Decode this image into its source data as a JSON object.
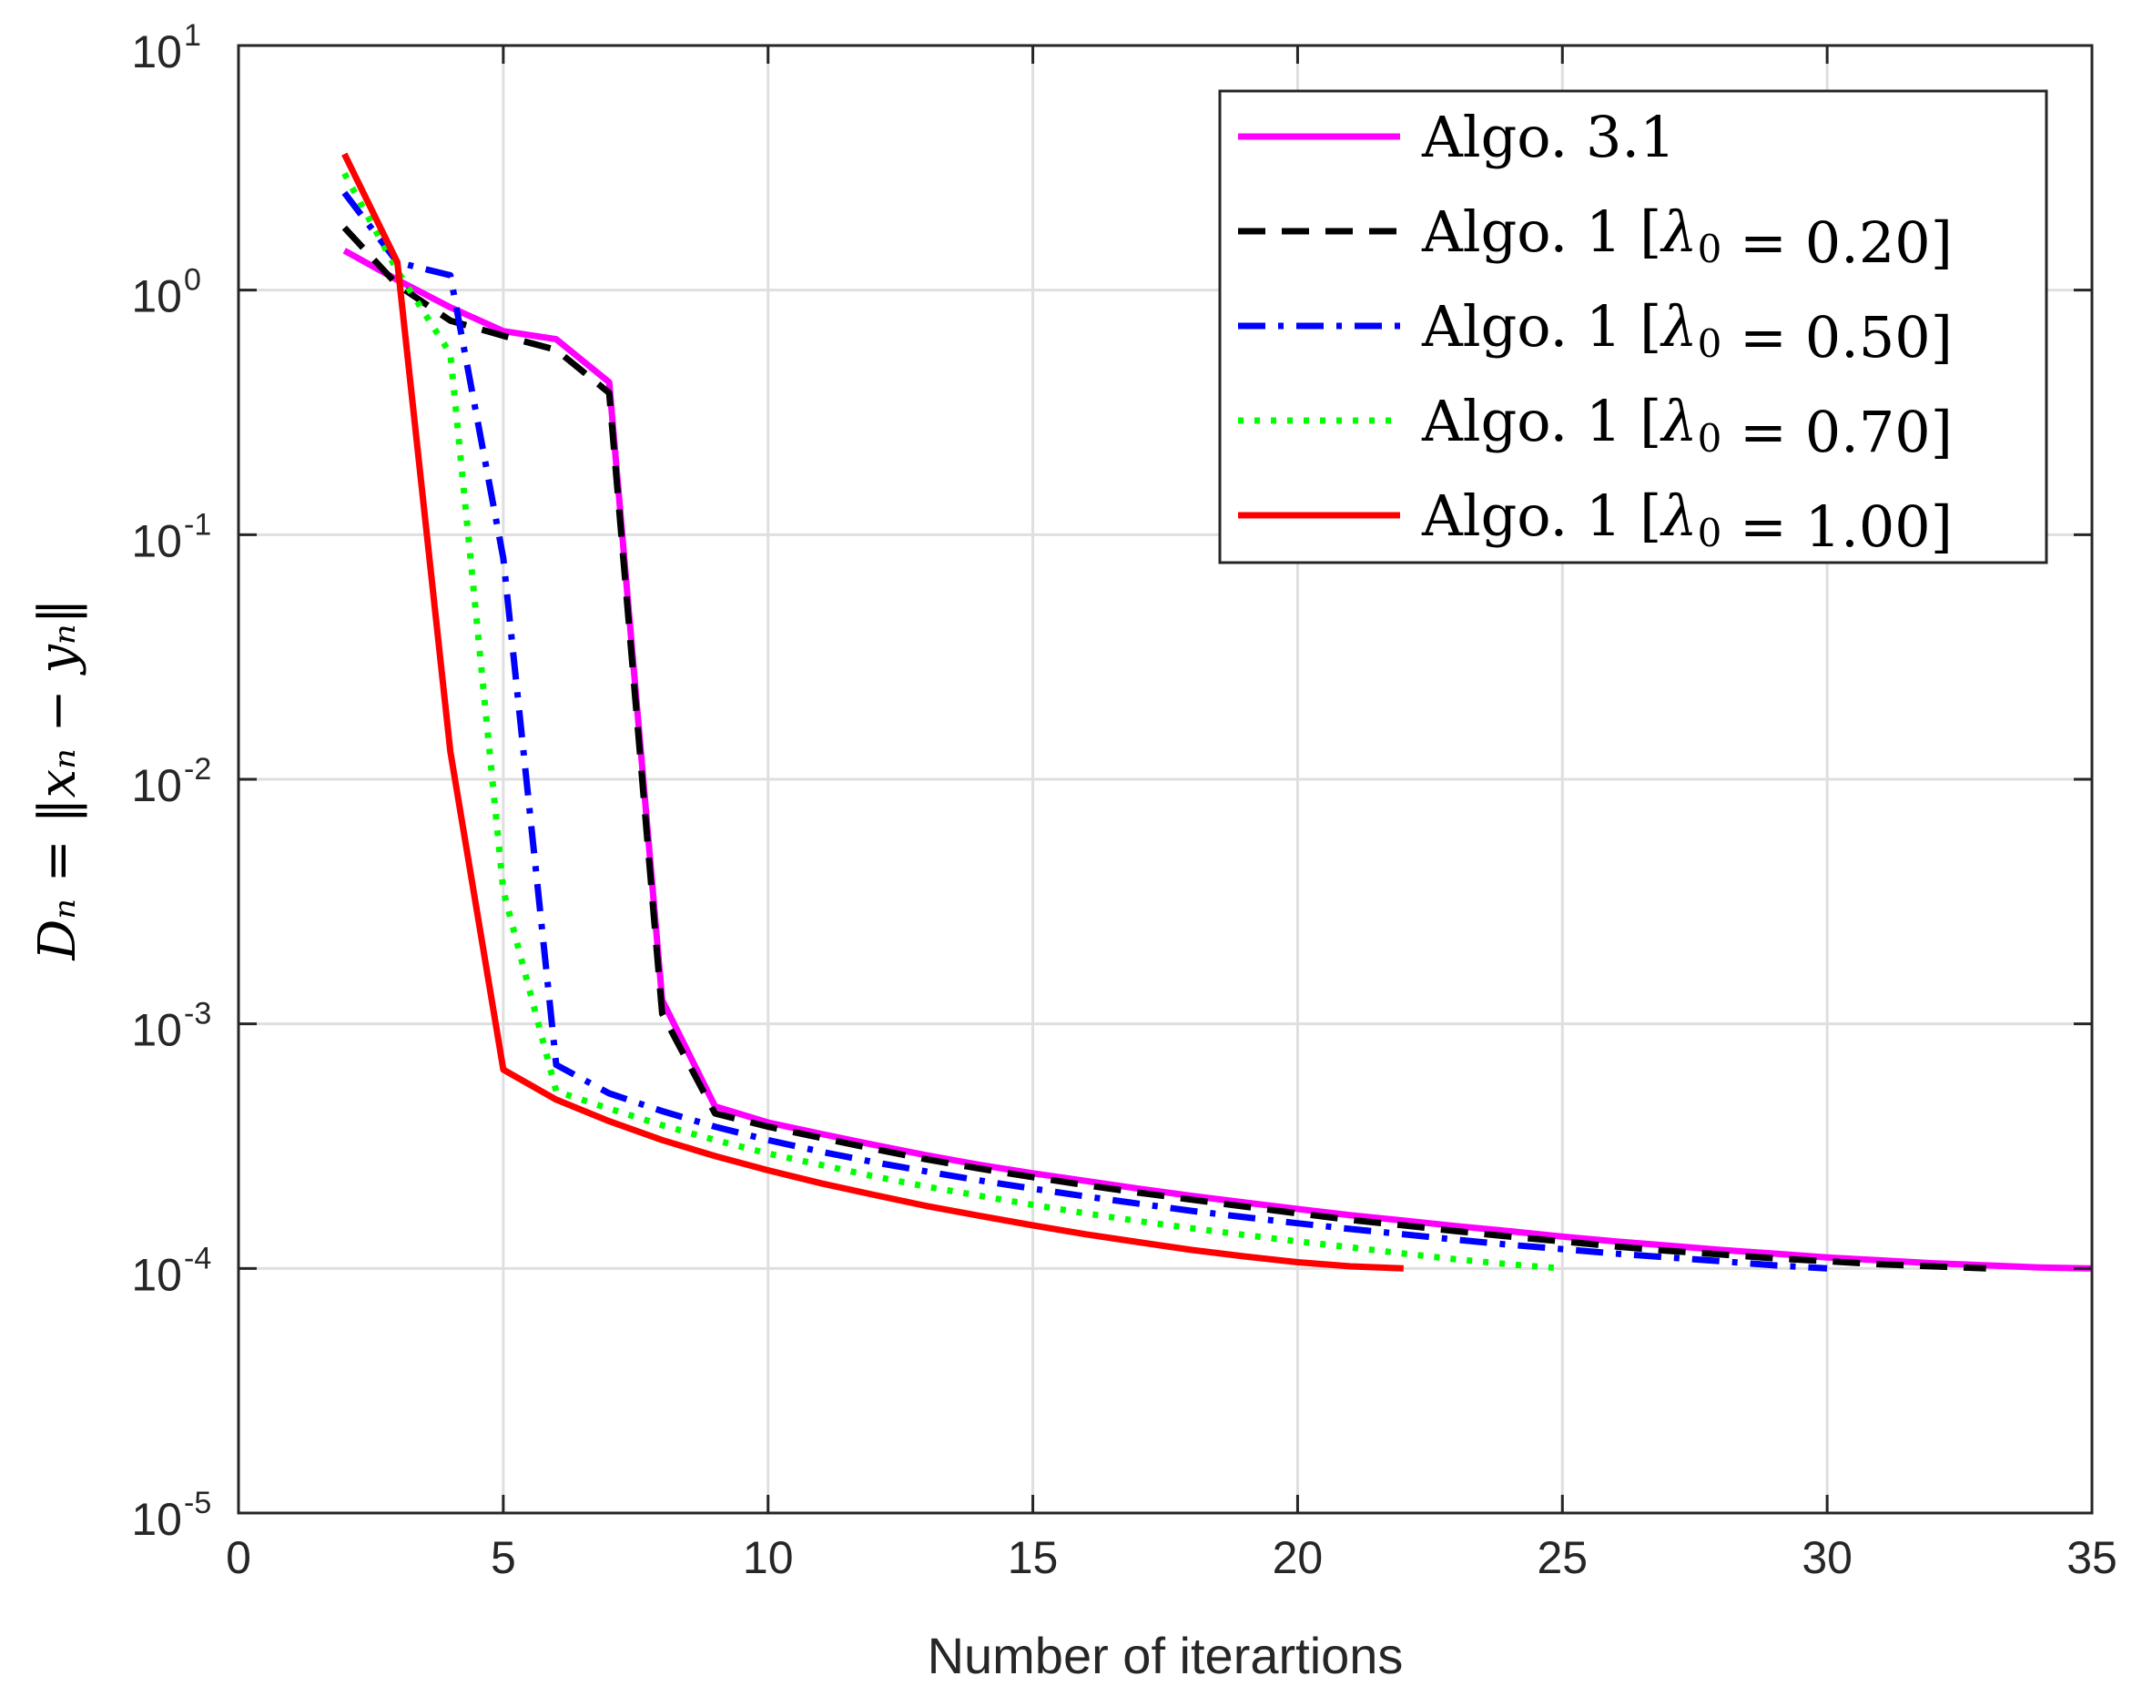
{
  "chart_data": {
    "type": "line",
    "xlabel": "Number of iterartions",
    "ylabel": "D_n = ||x_n − y_n||",
    "ylabel_display": "Dₙ = ‖xₙ − yₙ‖",
    "xscale": "linear",
    "yscale": "log",
    "xlim": [
      0,
      35
    ],
    "ylim": [
      1e-05,
      10
    ],
    "grid": true,
    "legend_position": "top-right",
    "x_ticks": [
      {
        "value": 0,
        "label": "0"
      },
      {
        "value": 5,
        "label": "5"
      },
      {
        "value": 10,
        "label": "10"
      },
      {
        "value": 15,
        "label": "15"
      },
      {
        "value": 20,
        "label": "20"
      },
      {
        "value": 25,
        "label": "25"
      },
      {
        "value": 30,
        "label": "30"
      },
      {
        "value": 35,
        "label": "35"
      }
    ],
    "y_ticks": [
      {
        "value": 10,
        "base": "10",
        "exp": "1"
      },
      {
        "value": 1,
        "base": "10",
        "exp": "0"
      },
      {
        "value": 0.1,
        "base": "10",
        "exp": "-1"
      },
      {
        "value": 0.01,
        "base": "10",
        "exp": "-2"
      },
      {
        "value": 0.001,
        "base": "10",
        "exp": "-3"
      },
      {
        "value": 0.0001,
        "base": "10",
        "exp": "-4"
      },
      {
        "value": 1e-05,
        "base": "10",
        "exp": "-5"
      }
    ],
    "series": [
      {
        "name": "Algo. 3.1",
        "color": "#ff00ff",
        "style": "solid",
        "points": [
          [
            2,
            1.45
          ],
          [
            3,
            1.1
          ],
          [
            4,
            0.85
          ],
          [
            5,
            0.68
          ],
          [
            6,
            0.63
          ],
          [
            7,
            0.42
          ],
          [
            8,
            0.00125
          ],
          [
            9,
            0.00046
          ],
          [
            10,
            0.000395
          ],
          [
            11,
            0.000355
          ],
          [
            12,
            0.00032
          ],
          [
            13,
            0.00029
          ],
          [
            14,
            0.000265
          ],
          [
            15,
            0.000245
          ],
          [
            16,
            0.000228
          ],
          [
            17,
            0.000212
          ],
          [
            18,
            0.000198
          ],
          [
            19,
            0.000186
          ],
          [
            20,
            0.000175
          ],
          [
            21,
            0.000165
          ],
          [
            22,
            0.000157
          ],
          [
            23,
            0.000149
          ],
          [
            24,
            0.000142
          ],
          [
            25,
            0.000135
          ],
          [
            26,
            0.000129
          ],
          [
            27,
            0.000124
          ],
          [
            28,
            0.000119
          ],
          [
            29,
            0.000115
          ],
          [
            30,
            0.000111
          ],
          [
            31,
            0.000108
          ],
          [
            32,
            0.000105
          ],
          [
            33,
            0.000103
          ],
          [
            34,
            0.000101
          ],
          [
            35,
            0.0001
          ]
        ]
      },
      {
        "name": "Algo. 1 [λ0 = 0.20]",
        "color": "#000000",
        "style": "dashed",
        "points": [
          [
            2,
            1.8
          ],
          [
            3,
            1.05
          ],
          [
            4,
            0.75
          ],
          [
            5,
            0.65
          ],
          [
            6,
            0.57
          ],
          [
            7,
            0.38
          ],
          [
            8,
            0.0011
          ],
          [
            9,
            0.00043
          ],
          [
            10,
            0.00038
          ],
          [
            11,
            0.000342
          ],
          [
            12,
            0.000308
          ],
          [
            13,
            0.000279
          ],
          [
            14,
            0.000256
          ],
          [
            15,
            0.000236
          ],
          [
            16,
            0.000219
          ],
          [
            17,
            0.000204
          ],
          [
            18,
            0.000191
          ],
          [
            19,
            0.000179
          ],
          [
            20,
            0.000168
          ],
          [
            21,
            0.000158
          ],
          [
            22,
            0.00015
          ],
          [
            23,
            0.000142
          ],
          [
            24,
            0.000135
          ],
          [
            25,
            0.000129
          ],
          [
            26,
            0.000123
          ],
          [
            27,
            0.000118
          ],
          [
            28,
            0.000114
          ],
          [
            29,
            0.00011
          ],
          [
            30,
            0.000107
          ],
          [
            31,
            0.000104
          ],
          [
            32,
            0.000102
          ],
          [
            33,
            0.0001
          ]
        ]
      },
      {
        "name": "Algo. 1 [λ0 = 0.50]",
        "color": "#0000ff",
        "style": "dashdot",
        "points": [
          [
            2,
            2.5
          ],
          [
            3,
            1.3
          ],
          [
            4,
            1.15
          ],
          [
            5,
            0.08
          ],
          [
            6,
            0.00068
          ],
          [
            7,
            0.00052
          ],
          [
            8,
            0.00044
          ],
          [
            9,
            0.00038
          ],
          [
            10,
            0.000335
          ],
          [
            11,
            0.0003
          ],
          [
            12,
            0.000272
          ],
          [
            13,
            0.000249
          ],
          [
            14,
            0.000229
          ],
          [
            15,
            0.000212
          ],
          [
            16,
            0.000197
          ],
          [
            17,
            0.000184
          ],
          [
            18,
            0.000172
          ],
          [
            19,
            0.000162
          ],
          [
            20,
            0.000153
          ],
          [
            21,
            0.000145
          ],
          [
            22,
            0.000138
          ],
          [
            23,
            0.000131
          ],
          [
            24,
            0.000125
          ],
          [
            25,
            0.00012
          ],
          [
            26,
            0.000115
          ],
          [
            27,
            0.000111
          ],
          [
            28,
            0.000107
          ],
          [
            29,
            0.000103
          ],
          [
            30,
            0.0001
          ]
        ]
      },
      {
        "name": "Algo. 1 [λ0 = 0.70]",
        "color": "#00ff00",
        "style": "dotted",
        "points": [
          [
            2,
            3.0
          ],
          [
            3,
            1.2
          ],
          [
            4,
            0.55
          ],
          [
            5,
            0.0035
          ],
          [
            6,
            0.00053
          ],
          [
            7,
            0.00045
          ],
          [
            8,
            0.000385
          ],
          [
            9,
            0.000335
          ],
          [
            10,
            0.000295
          ],
          [
            11,
            0.000265
          ],
          [
            12,
            0.000238
          ],
          [
            13,
            0.000216
          ],
          [
            14,
            0.000198
          ],
          [
            15,
            0.000182
          ],
          [
            16,
            0.000168
          ],
          [
            17,
            0.000156
          ],
          [
            18,
            0.000146
          ],
          [
            19,
            0.000137
          ],
          [
            20,
            0.000129
          ],
          [
            21,
            0.000122
          ],
          [
            22,
            0.000115
          ],
          [
            23,
            0.000109
          ],
          [
            24,
            0.000104
          ],
          [
            25,
            0.0001
          ]
        ]
      },
      {
        "name": "Algo. 1 [λ0 = 1.00]",
        "color": "#ff0000",
        "style": "solid",
        "points": [
          [
            2,
            3.6
          ],
          [
            3,
            1.3
          ],
          [
            4,
            0.013
          ],
          [
            5,
            0.00065
          ],
          [
            6,
            0.00049
          ],
          [
            7,
            0.0004
          ],
          [
            8,
            0.000335
          ],
          [
            9,
            0.000288
          ],
          [
            10,
            0.000252
          ],
          [
            11,
            0.000223
          ],
          [
            12,
            0.0002
          ],
          [
            13,
            0.00018
          ],
          [
            14,
            0.000164
          ],
          [
            15,
            0.00015
          ],
          [
            16,
            0.000138
          ],
          [
            17,
            0.000128
          ],
          [
            18,
            0.000119
          ],
          [
            19,
            0.000112
          ],
          [
            20,
            0.000106
          ],
          [
            21,
            0.000102
          ],
          [
            22,
            0.0001
          ]
        ]
      }
    ],
    "legend": [
      {
        "prefix": "Algo. ",
        "value": "3.1",
        "lambda_sym": "",
        "sub": "",
        "eq": "",
        "lam_value": "",
        "bracket_open": "",
        "bracket_close": ""
      },
      {
        "prefix": "Algo. ",
        "value": "1",
        "bracket_open": "[",
        "lambda_sym": "λ",
        "sub": "0",
        "eq": " = ",
        "lam_value": "0.20",
        "bracket_close": "]"
      },
      {
        "prefix": "Algo. ",
        "value": "1",
        "bracket_open": "[",
        "lambda_sym": "λ",
        "sub": "0",
        "eq": " = ",
        "lam_value": "0.50",
        "bracket_close": "]"
      },
      {
        "prefix": "Algo. ",
        "value": "1",
        "bracket_open": "[",
        "lambda_sym": "λ",
        "sub": "0",
        "eq": " = ",
        "lam_value": "0.70",
        "bracket_close": "]"
      },
      {
        "prefix": "Algo. ",
        "value": "1",
        "bracket_open": "[",
        "lambda_sym": "λ",
        "sub": "0",
        "eq": " = ",
        "lam_value": "1.00",
        "bracket_close": "]"
      }
    ]
  }
}
